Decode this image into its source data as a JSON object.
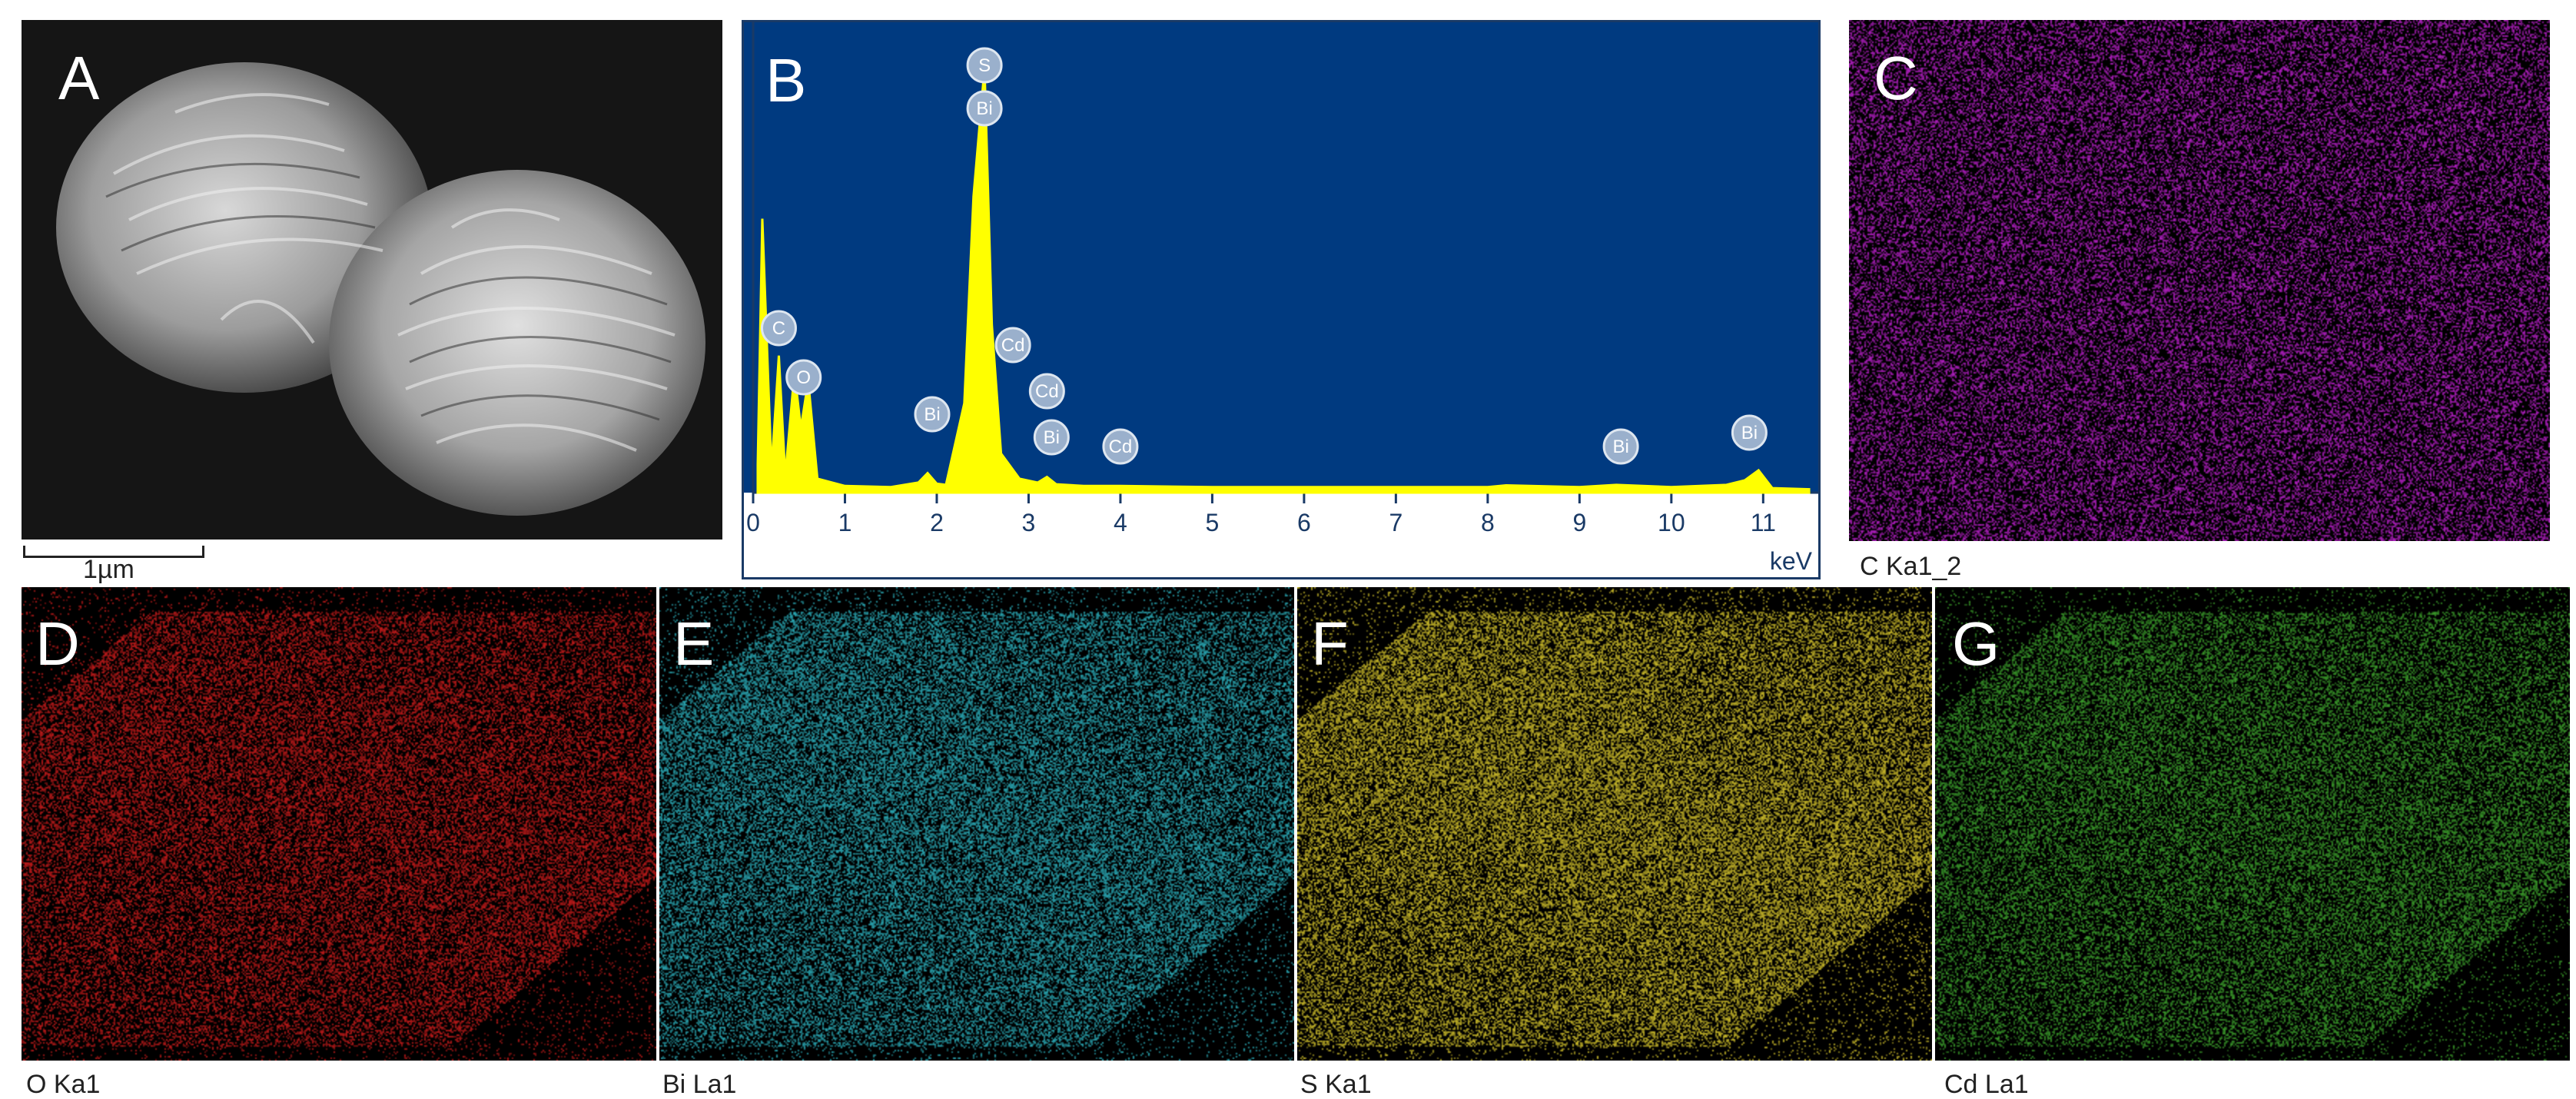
{
  "figure": {
    "panel_letters": [
      "A",
      "B",
      "C",
      "D",
      "E",
      "F",
      "G"
    ],
    "scale_bar_label": "1µm",
    "map_captions": {
      "c": "C Ka1_2",
      "o": "O Ka1",
      "bi": "Bi La1",
      "s": "S Ka1",
      "cd": "Cd La1"
    },
    "map_colors": {
      "c": "#b21fc2",
      "o": "#c01a1a",
      "bi": "#2aa7b3",
      "s": "#c9b92a",
      "cd": "#3a9a2a"
    }
  },
  "chart_data": {
    "type": "line",
    "xlabel": "keV",
    "xlim": [
      0,
      11.6
    ],
    "x_ticks": [
      "0",
      "1",
      "2",
      "3",
      "4",
      "5",
      "6",
      "7",
      "8",
      "9",
      "10",
      "11"
    ],
    "background": "#003a80",
    "line_color": "#ffff00",
    "spectrum": {
      "x": [
        0.05,
        0.1,
        0.2,
        0.28,
        0.35,
        0.45,
        0.52,
        0.6,
        0.7,
        1.0,
        1.5,
        1.8,
        1.9,
        2.0,
        2.1,
        2.3,
        2.4,
        2.52,
        2.6,
        2.7,
        2.9,
        3.1,
        3.2,
        3.3,
        3.6,
        4.0,
        5.0,
        7.0,
        8.0,
        8.2,
        9.0,
        9.4,
        10.0,
        10.6,
        10.8,
        10.95,
        11.1,
        11.5
      ],
      "y": [
        50,
        490,
        40,
        245,
        30,
        215,
        115,
        200,
        25,
        12,
        10,
        18,
        35,
        16,
        14,
        160,
        530,
        760,
        300,
        70,
        25,
        18,
        28,
        15,
        12,
        12,
        10,
        10,
        10,
        13,
        10,
        14,
        10,
        14,
        22,
        40,
        8,
        6
      ]
    },
    "peaks": [
      {
        "label": "S",
        "x": 2.52
      },
      {
        "label": "Bi",
        "x": 2.52
      },
      {
        "label": "C",
        "x": 0.28
      },
      {
        "label": "O",
        "x": 0.55
      },
      {
        "label": "Cd",
        "x": 2.83
      },
      {
        "label": "Bi",
        "x": 1.95
      },
      {
        "label": "Cd",
        "x": 3.2
      },
      {
        "label": "Bi",
        "x": 3.25
      },
      {
        "label": "Cd",
        "x": 4.0
      },
      {
        "label": "Bi",
        "x": 9.45
      },
      {
        "label": "Bi",
        "x": 10.85
      }
    ],
    "ylim": [
      0,
      800
    ]
  }
}
